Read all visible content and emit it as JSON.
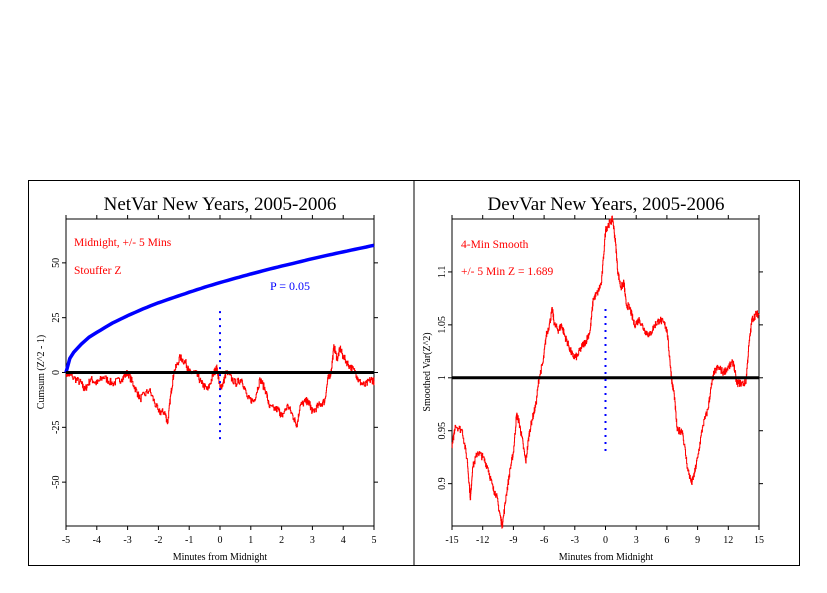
{
  "chart_data": [
    {
      "type": "line",
      "title": "NetVar New Years, 2005-2006",
      "xlabel": "Minutes from Midnight",
      "ylabel": "Cumsum (Z^2 - 1)",
      "xlim": [
        -5,
        5
      ],
      "ylim": [
        -70,
        70
      ],
      "xticks": [
        -5,
        -4,
        -3,
        -2,
        -1,
        0,
        1,
        2,
        3,
        4,
        5
      ],
      "yticks": [
        50,
        25,
        0,
        -25,
        -50
      ],
      "grid": false,
      "annotations": [
        "Midnight, +/- 5 Mins",
        "Stouffer Z"
      ],
      "envelope_label": "P = 0.05",
      "colors": {
        "data": "#ff0000",
        "envelope": "#0000ff",
        "marker": "#0000ff",
        "baseline": "#000000"
      },
      "midnight_marker": {
        "x": 0,
        "from": 28,
        "to": -31
      },
      "series": [
        {
          "name": "Stouffer Z cumsum",
          "color": "#ff0000",
          "x": [
            -5,
            -4.8,
            -4.5,
            -4.4,
            -4.2,
            -4,
            -3.8,
            -3.5,
            -3.2,
            -3,
            -2.8,
            -2.6,
            -2.3,
            -2,
            -1.8,
            -1.7,
            -1.6,
            -1.5,
            -1.3,
            -1.1,
            -1,
            -0.8,
            -0.6,
            -0.4,
            -0.2,
            -0.1,
            0,
            0.1,
            0.2,
            0.5,
            0.7,
            0.9,
            1.1,
            1.3,
            1.5,
            1.6,
            1.9,
            2,
            2.2,
            2.4,
            2.5,
            2.6,
            2.8,
            2.9,
            3,
            3.2,
            3.4,
            3.5,
            3.6,
            3.7,
            3.8,
            3.9,
            4,
            4.2,
            4.4,
            4.5,
            4.7,
            4.9,
            5
          ],
          "y": [
            0,
            -2,
            -5,
            -8,
            -3,
            -5,
            -2,
            -5,
            -3,
            0,
            -6,
            -12,
            -8,
            -18,
            -18,
            -23,
            -10,
            0,
            7,
            4,
            0,
            0,
            -5,
            -8,
            0,
            2,
            -7,
            -5,
            0,
            -5,
            -3,
            -12,
            -13,
            -3,
            -9,
            -16,
            -17,
            -20,
            -15,
            -21,
            -24,
            -15,
            -13,
            -14,
            -18,
            -15,
            -13,
            -3,
            0,
            12,
            6,
            11,
            7,
            3,
            0,
            -4,
            -6,
            -3,
            -4
          ]
        },
        {
          "name": "P = 0.05",
          "color": "#0000ff",
          "x": [
            -5,
            -4.9,
            -4.75,
            -4.5,
            -4.25,
            -4,
            -3.5,
            -3,
            -2.5,
            -2,
            -1.5,
            -1,
            -0.5,
            0,
            0.5,
            1,
            1.5,
            2,
            2.5,
            3,
            3.5,
            4,
            4.5,
            5
          ],
          "y": [
            0,
            5.8,
            9.2,
            13,
            16.1,
            18.3,
            22.5,
            25.9,
            29,
            31.8,
            34.2,
            36.6,
            38.9,
            41,
            43,
            44.9,
            46.8,
            48.5,
            50.2,
            51.9,
            53.5,
            55,
            56.5,
            58
          ]
        }
      ]
    },
    {
      "type": "line",
      "title": "DevVar New Years, 2005-2006",
      "xlabel": "Minutes from Midnight",
      "ylabel": "Smoothed Var(Z^2)",
      "xlim": [
        -15,
        15
      ],
      "ylim": [
        0.86,
        1.15
      ],
      "xticks": [
        -15,
        -12,
        -9,
        -6,
        -3,
        0,
        3,
        6,
        9,
        12,
        15
      ],
      "yticks": [
        1.1,
        1.05,
        1,
        0.95,
        0.9
      ],
      "grid": false,
      "annotations": [
        "4-Min Smooth",
        "+/- 5 Min Z = 1.689"
      ],
      "colors": {
        "data": "#ff0000",
        "marker": "#0000ff",
        "baseline": "#000000"
      },
      "midnight_marker": {
        "x": 0,
        "from": 1.065,
        "to": 0.928
      },
      "series": [
        {
          "name": "4-Min Smooth",
          "color": "#ff0000",
          "x": [
            -15,
            -14.7,
            -14,
            -13.5,
            -13.2,
            -13,
            -12.5,
            -12,
            -11.5,
            -11,
            -10.7,
            -10.3,
            -10.1,
            -9.7,
            -9.3,
            -9,
            -8.7,
            -8.5,
            -8.2,
            -7.8,
            -7.5,
            -7.2,
            -6.8,
            -6.5,
            -6.1,
            -5.8,
            -5.5,
            -5.2,
            -5,
            -4.6,
            -4.3,
            -4,
            -3.6,
            -3.2,
            -2.8,
            -2.3,
            -1.9,
            -1.5,
            -1.2,
            -0.8,
            -0.4,
            0,
            0.3,
            0.7,
            1,
            1.2,
            1.5,
            1.8,
            2,
            2.4,
            2.8,
            3.3,
            3.8,
            4.3,
            4.8,
            5.3,
            5.8,
            6,
            6.3,
            6.5,
            6.7,
            7,
            7.5,
            8,
            8.4,
            8.7,
            9,
            9.5,
            10,
            10.3,
            10.6,
            11,
            11.5,
            12,
            12.5,
            12.8,
            13.2,
            13.7,
            14,
            14.3,
            14.7,
            15
          ],
          "y": [
            0.934,
            0.955,
            0.95,
            0.92,
            0.885,
            0.915,
            0.93,
            0.925,
            0.915,
            0.895,
            0.89,
            0.87,
            0.86,
            0.89,
            0.915,
            0.93,
            0.965,
            0.96,
            0.945,
            0.92,
            0.945,
            0.96,
            0.975,
            1.0,
            1.015,
            1.04,
            1.05,
            1.065,
            1.05,
            1.045,
            1.05,
            1.04,
            1.03,
            1.02,
            1.02,
            1.03,
            1.035,
            1.045,
            1.075,
            1.08,
            1.09,
            1.14,
            1.145,
            1.15,
            1.125,
            1.1,
            1.085,
            1.09,
            1.07,
            1.065,
            1.05,
            1.055,
            1.045,
            1.04,
            1.05,
            1.055,
            1.05,
            1.045,
            1.015,
            0.995,
            0.985,
            0.95,
            0.95,
            0.915,
            0.9,
            0.91,
            0.925,
            0.955,
            0.97,
            0.99,
            1.005,
            1.01,
            1.005,
            1.01,
            1.015,
            0.995,
            0.995,
            0.995,
            1.03,
            1.055,
            1.06,
            1.06
          ]
        }
      ]
    }
  ]
}
